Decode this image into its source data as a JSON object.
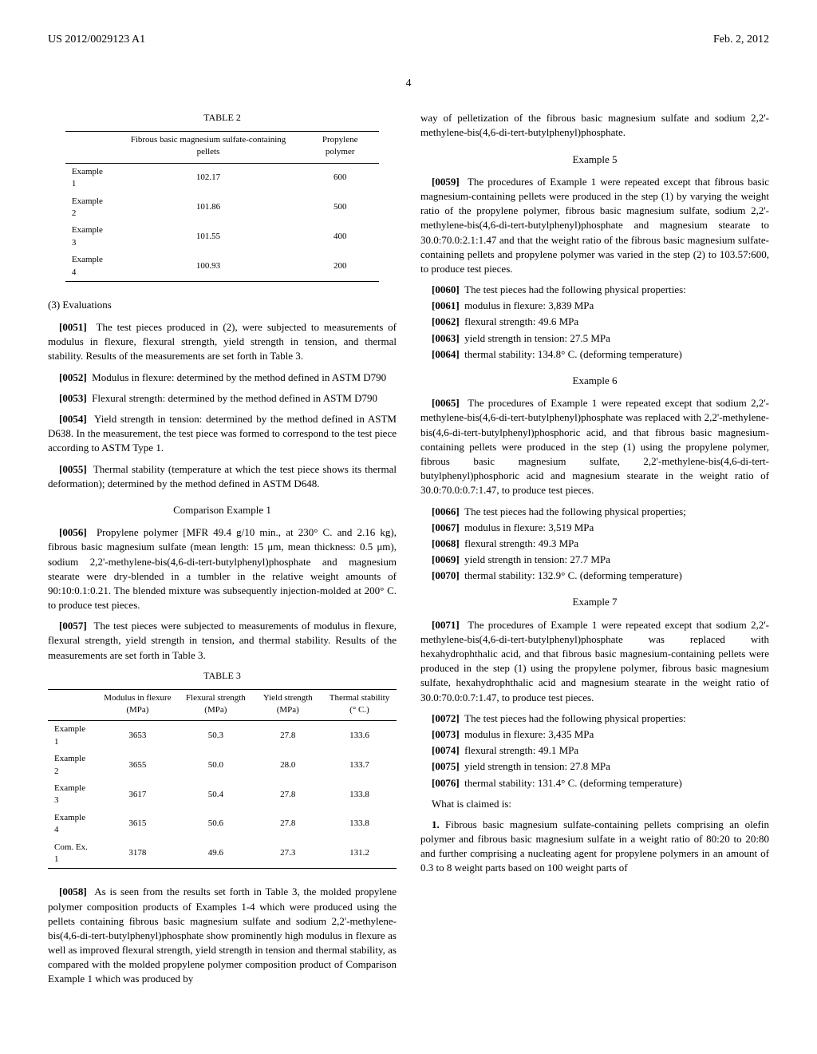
{
  "header": {
    "left": "US 2012/0029123 A1",
    "right": "Feb. 2, 2012"
  },
  "page_number": "4",
  "left_col": {
    "table2": {
      "title": "TABLE 2",
      "columns": [
        "",
        "Fibrous basic magnesium sulfate-containing pellets",
        "Propylene polymer"
      ],
      "rows": [
        [
          "Example 1",
          "102.17",
          "600"
        ],
        [
          "Example 2",
          "101.86",
          "500"
        ],
        [
          "Example 3",
          "101.55",
          "400"
        ],
        [
          "Example 4",
          "100.93",
          "200"
        ]
      ],
      "font_size": 11,
      "border_color": "#000000"
    },
    "section_eval": "(3) Evaluations",
    "p0051_num": "[0051]",
    "p0051": "The test pieces produced in (2), were subjected to measurements of modulus in flexure, flexural strength, yield strength in tension, and thermal stability. Results of the measurements are set forth in Table 3.",
    "p0052_num": "[0052]",
    "p0052": "Modulus in flexure: determined by the method defined in ASTM D790",
    "p0053_num": "[0053]",
    "p0053": "Flexural strength: determined by the method defined in ASTM D790",
    "p0054_num": "[0054]",
    "p0054": "Yield strength in tension: determined by the method defined in ASTM D638. In the measurement, the test piece was formed to correspond to the test piece according to ASTM Type 1.",
    "p0055_num": "[0055]",
    "p0055": "Thermal stability (temperature at which the test piece shows its thermal deformation); determined by the method defined in ASTM D648.",
    "comp_ex1_title": "Comparison Example 1",
    "p0056_num": "[0056]",
    "p0056": "Propylene polymer [MFR 49.4 g/10 min., at 230° C. and 2.16 kg), fibrous basic magnesium sulfate (mean length: 15 μm, mean thickness: 0.5 μm), sodium 2,2'-methylene-bis(4,6-di-tert-butylphenyl)phosphate and magnesium stearate were dry-blended in a tumbler in the relative weight amounts of 90:10:0.1:0.21. The blended mixture was subsequently injection-molded at 200° C. to produce test pieces.",
    "p0057_num": "[0057]",
    "p0057": "The test pieces were subjected to measurements of modulus in flexure, flexural strength, yield strength in tension, and thermal stability. Results of the measurements are set forth in Table 3.",
    "table3": {
      "title": "TABLE 3",
      "columns": [
        "",
        "Modulus in flexure (MPa)",
        "Flexural strength (MPa)",
        "Yield strength (MPa)",
        "Thermal stability (° C.)"
      ],
      "rows": [
        [
          "Example 1",
          "3653",
          "50.3",
          "27.8",
          "133.6"
        ],
        [
          "Example 2",
          "3655",
          "50.0",
          "28.0",
          "133.7"
        ],
        [
          "Example 3",
          "3617",
          "50.4",
          "27.8",
          "133.8"
        ],
        [
          "Example 4",
          "3615",
          "50.6",
          "27.8",
          "133.8"
        ],
        [
          "Com. Ex. 1",
          "3178",
          "49.6",
          "27.3",
          "131.2"
        ]
      ],
      "font_size": 11,
      "border_color": "#000000"
    },
    "p0058_num": "[0058]",
    "p0058": "As is seen from the results set forth in Table 3, the molded propylene polymer composition products of Examples 1-4 which were produced using the pellets containing fibrous basic magnesium sulfate and sodium 2,2'-methylene-bis(4,6-di-tert-butylphenyl)phosphate show prominently high modulus in flexure as well as improved flexural strength, yield strength in tension and thermal stability, as compared with the molded propylene polymer composition product of Comparison Example 1 which was produced by"
  },
  "right_col": {
    "top_cont": "way of pelletization of the fibrous basic magnesium sulfate and sodium 2,2'-methylene-bis(4,6-di-tert-butylphenyl)phosphate.",
    "ex5_title": "Example 5",
    "p0059_num": "[0059]",
    "p0059": "The procedures of Example 1 were repeated except that fibrous basic magnesium-containing pellets were produced in the step (1) by varying the weight ratio of the propylene polymer, fibrous basic magnesium sulfate, sodium 2,2'-methylene-bis(4,6-di-tert-butylphenyl)phosphate and magnesium stearate to 30.0:70.0:2.1:1.47 and that the weight ratio of the fibrous basic magnesium sulfate-containing pellets and propylene polymer was varied in the step (2) to 103.57:600, to produce test pieces.",
    "p0060_num": "[0060]",
    "p0060": "The test pieces had the following physical properties:",
    "p0061_num": "[0061]",
    "p0061": "modulus in flexure: 3,839 MPa",
    "p0062_num": "[0062]",
    "p0062": "flexural strength: 49.6 MPa",
    "p0063_num": "[0063]",
    "p0063": "yield strength in tension: 27.5 MPa",
    "p0064_num": "[0064]",
    "p0064": "thermal stability: 134.8° C. (deforming temperature)",
    "ex6_title": "Example 6",
    "p0065_num": "[0065]",
    "p0065": "The procedures of Example 1 were repeated except that sodium 2,2'-methylene-bis(4,6-di-tert-butylphenyl)phosphate was replaced with 2,2'-methylene-bis(4,6-di-tert-butylphenyl)phosphoric acid, and that fibrous basic magnesium-containing pellets were produced in the step (1) using the propylene polymer, fibrous basic magnesium sulfate, 2,2'-methylene-bis(4,6-di-tert-butylphenyl)phosphoric acid and magnesium stearate in the weight ratio of 30.0:70.0:0.7:1.47, to produce test pieces.",
    "p0066_num": "[0066]",
    "p0066": "The test pieces had the following physical properties;",
    "p0067_num": "[0067]",
    "p0067": "modulus in flexure: 3,519 MPa",
    "p0068_num": "[0068]",
    "p0068": "flexural strength: 49.3 MPa",
    "p0069_num": "[0069]",
    "p0069": "yield strength in tension: 27.7 MPa",
    "p0070_num": "[0070]",
    "p0070": "thermal stability: 132.9° C. (deforming temperature)",
    "ex7_title": "Example 7",
    "p0071_num": "[0071]",
    "p0071": "The procedures of Example 1 were repeated except that sodium 2,2'-methylene-bis(4,6-di-tert-butylphenyl)phosphate was replaced with hexahydrophthalic acid, and that fibrous basic magnesium-containing pellets were produced in the step (1) using the propylene polymer, fibrous basic magnesium sulfate, hexahydrophthalic acid and magnesium stearate in the weight ratio of 30.0:70.0:0.7:1.47, to produce test pieces.",
    "p0072_num": "[0072]",
    "p0072": "The test pieces had the following physical properties:",
    "p0073_num": "[0073]",
    "p0073": "modulus in flexure: 3,435 MPa",
    "p0074_num": "[0074]",
    "p0074": "flexural strength: 49.1 MPa",
    "p0075_num": "[0075]",
    "p0075": "yield strength in tension: 27.8 MPa",
    "p0076_num": "[0076]",
    "p0076": "thermal stability: 131.4° C. (deforming temperature)",
    "claims_title": "What is claimed is:",
    "claim1_num": "1.",
    "claim1": "Fibrous basic magnesium sulfate-containing pellets comprising an olefin polymer and fibrous basic magnesium sulfate in a weight ratio of 80:20 to 20:80 and further comprising a nucleating agent for propylene polymers in an amount of 0.3 to 8 weight parts based on 100 weight parts of"
  }
}
